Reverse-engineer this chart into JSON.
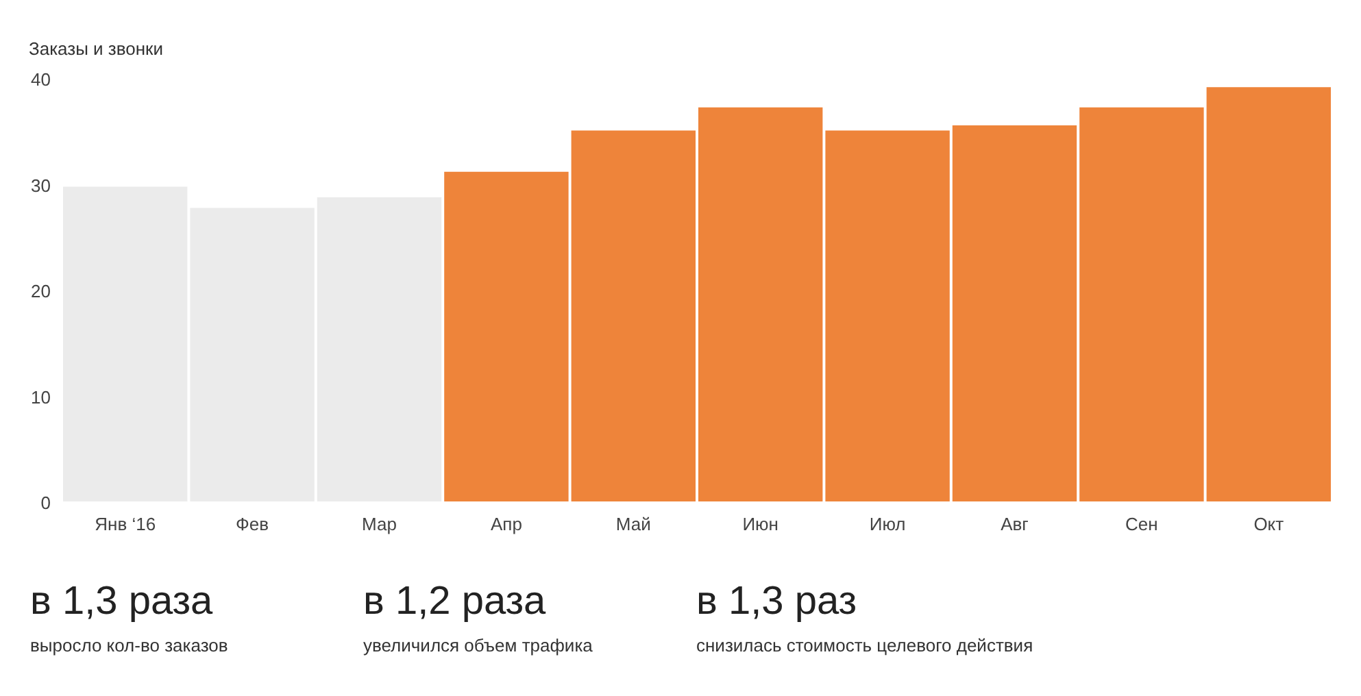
{
  "chart_data": {
    "type": "bar",
    "ylabel": "Заказы и звонки",
    "categories": [
      "Янв ‘16",
      "Фев",
      "Мар",
      "Апр",
      "Май",
      "Июн",
      "Июл",
      "Авг",
      "Сен",
      "Окт"
    ],
    "values": [
      30,
      28,
      29,
      31.4,
      35.3,
      37.5,
      35.3,
      35.8,
      37.5,
      39.4
    ],
    "colors": [
      "#ebebeb",
      "#ebebeb",
      "#ebebeb",
      "#ee843a",
      "#ee843a",
      "#ee843a",
      "#ee843a",
      "#ee843a",
      "#ee843a",
      "#ee843a"
    ],
    "ylim": [
      0,
      40
    ],
    "yticks": [
      0,
      10,
      20,
      30,
      40
    ],
    "grid": false,
    "annotations": [
      "в 1,3 раза",
      "выросло кол-во заказов",
      "в 1,2 раза",
      "увеличился объем трафика",
      "в 1,3 раз",
      "снизилась стоимость целевого действия"
    ]
  }
}
